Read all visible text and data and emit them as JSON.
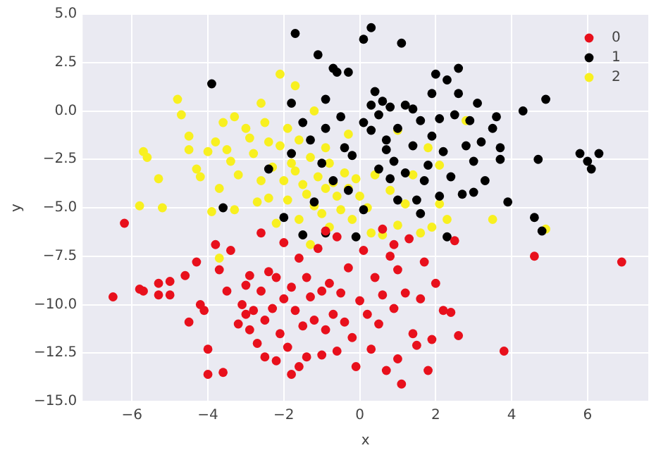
{
  "chart_data": {
    "type": "scatter",
    "xlabel": "x",
    "ylabel": "y",
    "grid": true,
    "legend": "top right",
    "marker": "circle",
    "xlim": [
      -7.3,
      7.6
    ],
    "ylim": [
      -15,
      5
    ],
    "xticks": [
      {
        "value": -6,
        "label": "−6"
      },
      {
        "value": -4,
        "label": "−4"
      },
      {
        "value": -2,
        "label": "−2"
      },
      0,
      2,
      4,
      6
    ],
    "yticks": [
      {
        "value": -15,
        "label": "−15.0"
      },
      {
        "value": -12.5,
        "label": "−12.5"
      },
      {
        "value": -10,
        "label": "−10.0"
      },
      {
        "value": -7.5,
        "label": "−7.5"
      },
      {
        "value": -5,
        "label": "−5.0"
      },
      {
        "value": -2.5,
        "label": "−2.5"
      },
      {
        "value": 0,
        "label": "0.0"
      },
      {
        "value": 2.5,
        "label": "2.5"
      },
      {
        "value": 5,
        "label": "5.0"
      }
    ],
    "series": [
      {
        "name": "0",
        "color": "#e8101c",
        "x": [
          -6.5,
          -6.2,
          -5.8,
          -5.7,
          -5.3,
          -5.3,
          -5,
          -5,
          -4.6,
          -4.5,
          -4.3,
          -4.2,
          -4.1,
          -4,
          -4,
          -3.8,
          -3.7,
          -3.6,
          -3.5,
          -3.4,
          -3.2,
          -3.1,
          -3,
          -3,
          -2.9,
          -2.9,
          -2.8,
          -2.7,
          -2.6,
          -2.6,
          -2.5,
          -2.5,
          -2.4,
          -2.3,
          -2.2,
          -2.1,
          -2,
          -2,
          -1.9,
          -1.8,
          -1.8,
          -1.7,
          -1.6,
          -1.5,
          -1.4,
          -1.4,
          -1.3,
          -1.2,
          -1.1,
          -1,
          -1,
          -0.9,
          -0.8,
          -0.7,
          -0.6,
          -0.6,
          -0.5,
          -0.4,
          -0.3,
          -0.2,
          -0.1,
          0,
          0.1,
          0.2,
          0.3,
          0.4,
          0.5,
          0.6,
          0.7,
          0.8,
          0.9,
          1,
          1,
          1.1,
          1.2,
          1.3,
          1.4,
          1.5,
          1.6,
          1.7,
          1.8,
          1.9,
          2,
          2.2,
          2.4,
          2.5,
          2.6,
          3.8,
          4.6,
          6.9,
          -0.9,
          0.6,
          0.9,
          -1.6,
          -2.2
        ],
        "values": [
          -9.6,
          -5.8,
          -9.2,
          -9.3,
          -9.5,
          -8.9,
          -9.5,
          -8.8,
          -8.5,
          -10.9,
          -7.8,
          -10,
          -10.3,
          -12.3,
          -13.6,
          -6.9,
          -8.2,
          -13.5,
          -9.3,
          -7.2,
          -11,
          -10,
          -10.5,
          -9,
          -11.3,
          -8.5,
          -10.3,
          -12,
          -6.3,
          -9.3,
          -10.8,
          -12.7,
          -8.3,
          -10.2,
          -8.6,
          -11.5,
          -6.8,
          -9.7,
          -12.2,
          -9.1,
          -13.6,
          -10.3,
          -7.6,
          -11.1,
          -8.6,
          -12.7,
          -9.6,
          -10.8,
          -7.1,
          -12.6,
          -9.3,
          -11.3,
          -8.9,
          -10.5,
          -6.5,
          -12.4,
          -9.4,
          -10.9,
          -8.1,
          -11.7,
          -13.2,
          -9.8,
          -7.2,
          -10.5,
          -12.3,
          -8.6,
          -11,
          -9.5,
          -13.4,
          -7.5,
          -10.2,
          -12.8,
          -8.2,
          -14.1,
          -9.4,
          -6.6,
          -11.5,
          -12.1,
          -9.7,
          -7.8,
          -13.4,
          -11.8,
          -8.9,
          -10.3,
          -10.4,
          -6.7,
          -11.6,
          -12.4,
          -7.5,
          -7.8,
          -6.2,
          -6.1,
          -6.9,
          -13.2,
          -12.9
        ]
      },
      {
        "name": "1",
        "color": "#000000",
        "x": [
          -3.9,
          -1.7,
          -1.1,
          -0.7,
          -0.6,
          -0.3,
          0.3,
          0.1,
          1.1,
          -1.8,
          -1.5,
          -1.3,
          -1.8,
          -3.6,
          -2,
          -1.5,
          -0.9,
          -0.7,
          -0.2,
          0.3,
          -0.5,
          0.6,
          0.8,
          0.5,
          0.3,
          1.2,
          1.4,
          1.9,
          2,
          2.3,
          2.1,
          2.6,
          2.5,
          1.9,
          1.4,
          0.9,
          0.5,
          1,
          1.5,
          2.1,
          2.7,
          3,
          3.2,
          3.5,
          2.8,
          3.7,
          3.6,
          4.3,
          4.7,
          4.9,
          5.8,
          6,
          6.1,
          6.3,
          4.6,
          4.8,
          3,
          3.3,
          2.4,
          1.7,
          0.1,
          -0.3,
          0.7,
          1,
          -0.9,
          -0.4,
          -1,
          -0.1,
          1.6,
          2.3,
          3.9,
          2.2,
          1.2,
          0.1,
          -1.2,
          -2.4,
          3.1,
          3.7,
          2.6,
          1.6,
          0.7,
          1.8,
          2.9,
          0.4,
          -0.9,
          0.8
        ],
        "values": [
          1.4,
          4,
          2.9,
          2.2,
          2,
          2,
          4.3,
          3.7,
          3.5,
          0.4,
          -0.6,
          -1.5,
          -2.2,
          -5,
          -5.5,
          -6.4,
          -6.3,
          -3.6,
          -2.3,
          -1,
          -0.3,
          0.5,
          0.2,
          -0.2,
          0.3,
          0.3,
          0.1,
          0.9,
          1.9,
          1.6,
          -0.4,
          2.2,
          -0.2,
          -1.3,
          -1.8,
          -2.6,
          -3,
          -4.6,
          -4.6,
          -4.4,
          -4.3,
          -2.6,
          -1.6,
          -0.9,
          -1.8,
          -2.5,
          -0.3,
          0,
          -2.5,
          0.6,
          -2.2,
          -2.6,
          -3,
          -2.2,
          -5.5,
          -6.2,
          -4.2,
          -3.6,
          -3.4,
          -3.6,
          -5.1,
          -4.1,
          -1.5,
          -0.9,
          -0.9,
          -1.9,
          -2.7,
          -6.5,
          -5.3,
          -6.5,
          -4.7,
          -2.1,
          -3.2,
          -0.6,
          -4.7,
          -3,
          0.4,
          -1.9,
          0.9,
          -0.5,
          -2,
          -2.8,
          -0.5,
          1,
          0.6,
          -3.5
        ]
      },
      {
        "name": "2",
        "color": "#f8f020",
        "x": [
          -5.7,
          -5.6,
          -5.3,
          -5.8,
          -4.5,
          -4.7,
          -4.5,
          -4.8,
          -4.3,
          -4.2,
          -4,
          -3.8,
          -3.6,
          -3.7,
          -3.4,
          -3.3,
          -3.2,
          -3,
          -2.8,
          -2.6,
          -2.5,
          -2.4,
          -2.3,
          -2.2,
          -2.1,
          -2,
          -1.9,
          -1.8,
          -1.7,
          -1.6,
          -1.5,
          -1.4,
          -1.3,
          -1.2,
          -1.1,
          -1,
          -0.9,
          -0.8,
          -0.7,
          -0.6,
          -0.5,
          -0.4,
          -0.3,
          -0.2,
          -0.1,
          0,
          0.2,
          0.4,
          0.6,
          0.8,
          1,
          1.2,
          1.4,
          1.6,
          1.9,
          2.1,
          2.3,
          2.1,
          2.8,
          3.5,
          4.9,
          -2.1,
          -1.7,
          -2.6,
          -1.2,
          -3.3,
          -2.9,
          -2.4,
          -1.9,
          -3.7,
          -5.2,
          -3.9,
          -1.3,
          0.3,
          -0.8,
          -2.7,
          -3.5,
          -1.6,
          -0.3,
          1,
          1.8,
          -0.9
        ],
        "values": [
          -2.1,
          -2.4,
          -3.5,
          -4.9,
          -1.3,
          -0.2,
          -2,
          0.6,
          -3,
          -3.4,
          -2.1,
          -1.6,
          -0.6,
          -4,
          -2.6,
          -5.1,
          -3.3,
          -0.9,
          -2.2,
          -3.6,
          -0.6,
          -4.5,
          -2.9,
          -5.8,
          -1.8,
          -3.6,
          -4.6,
          -2.7,
          -3.1,
          -5.6,
          -3.8,
          -4.3,
          -2.4,
          -4.9,
          -3.4,
          -5.3,
          -4,
          -2.7,
          -3.7,
          -4.4,
          -5.1,
          -3.2,
          -4,
          -5.6,
          -3.5,
          -4.4,
          -5,
          -3.3,
          -6.4,
          -4.1,
          -5.9,
          -4.8,
          -3.3,
          -6.3,
          -6,
          -4.8,
          -5.6,
          -2.8,
          -0.5,
          -5.6,
          -6.1,
          1.9,
          1.3,
          0.4,
          0,
          -0.3,
          -1.4,
          -1.6,
          -0.9,
          -7.6,
          -5,
          -5.2,
          -6.9,
          -6.3,
          -6,
          -4.7,
          -2,
          -1.5,
          -1.2,
          -1,
          -1.9,
          -1.9
        ]
      }
    ]
  }
}
